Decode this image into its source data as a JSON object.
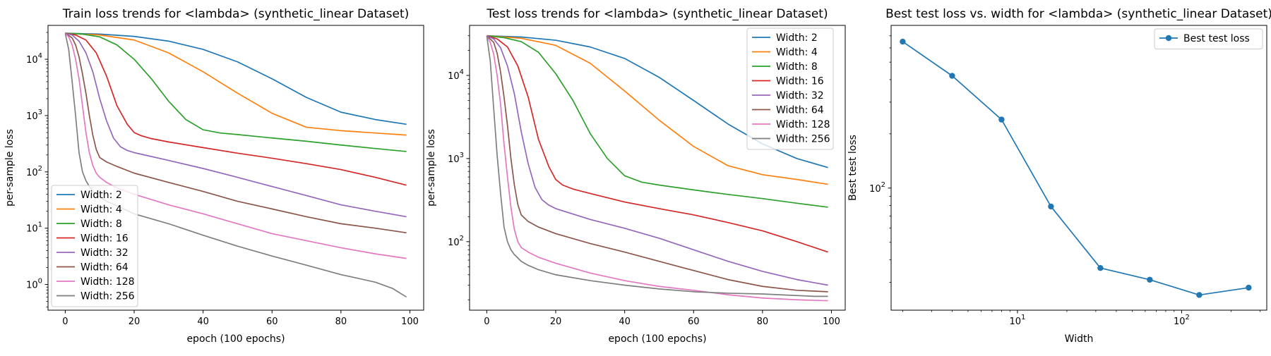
{
  "chart_data": [
    {
      "type": "line",
      "title": "Train loss trends for <lambda> (synthetic_linear Dataset)",
      "xlabel": "epoch (100 epochs)",
      "ylabel": "per-sample loss",
      "xlim": [
        -5,
        104
      ],
      "ylim": [
        0.35,
        40000
      ],
      "yscale": "log",
      "xticks": [
        {
          "v": 0,
          "label": "0"
        },
        {
          "v": 20,
          "label": "20"
        },
        {
          "v": 40,
          "label": "40"
        },
        {
          "v": 60,
          "label": "60"
        },
        {
          "v": 80,
          "label": "80"
        },
        {
          "v": 100,
          "label": "100"
        }
      ],
      "yticks": [
        {
          "v": 1,
          "label": "10^0"
        },
        {
          "v": 10,
          "label": "10^1"
        },
        {
          "v": 100,
          "label": "10^2"
        },
        {
          "v": 1000,
          "label": "10^3"
        },
        {
          "v": 10000,
          "label": "10^4"
        }
      ],
      "legend_position": "lower-left",
      "grid": false,
      "series": [
        {
          "name": "Width: 2",
          "color": "#1f77b4",
          "x": [
            0,
            10,
            20,
            30,
            40,
            50,
            60,
            70,
            80,
            90,
            99
          ],
          "values": [
            29000,
            28000,
            25500,
            21000,
            15000,
            9000,
            4500,
            2100,
            1150,
            850,
            700
          ]
        },
        {
          "name": "Width: 4",
          "color": "#ff7f0e",
          "x": [
            0,
            10,
            20,
            30,
            40,
            50,
            60,
            70,
            80,
            90,
            99
          ],
          "values": [
            29000,
            27000,
            22000,
            13000,
            6000,
            2500,
            1100,
            620,
            540,
            490,
            450
          ]
        },
        {
          "name": "Width: 8",
          "color": "#2ca02c",
          "x": [
            0,
            5,
            10,
            15,
            20,
            25,
            30,
            35,
            40,
            45,
            50,
            60,
            70,
            80,
            90,
            99
          ],
          "values": [
            29000,
            28000,
            25000,
            18000,
            10000,
            4500,
            1800,
            850,
            560,
            490,
            460,
            400,
            350,
            300,
            260,
            230
          ]
        },
        {
          "name": "Width: 16",
          "color": "#d62728",
          "x": [
            0,
            3,
            6,
            9,
            12,
            15,
            18,
            20,
            22,
            25,
            30,
            40,
            50,
            60,
            70,
            80,
            90,
            99
          ],
          "values": [
            29000,
            27000,
            22000,
            13000,
            5000,
            1500,
            700,
            500,
            440,
            390,
            340,
            270,
            215,
            175,
            140,
            110,
            80,
            58
          ]
        },
        {
          "name": "Width: 32",
          "color": "#9467bd",
          "x": [
            0,
            2,
            4,
            6,
            8,
            10,
            12,
            14,
            16,
            18,
            20,
            30,
            40,
            50,
            60,
            70,
            80,
            90,
            99
          ],
          "values": [
            29000,
            27000,
            21000,
            13000,
            6000,
            2000,
            800,
            400,
            280,
            240,
            220,
            160,
            115,
            80,
            55,
            38,
            26,
            20,
            16
          ]
        },
        {
          "name": "Width: 64",
          "color": "#8c564b",
          "x": [
            0,
            2,
            3,
            4,
            5,
            6,
            7,
            8,
            9,
            10,
            12,
            15,
            20,
            30,
            40,
            50,
            60,
            70,
            80,
            90,
            99
          ],
          "values": [
            29000,
            24000,
            18000,
            11000,
            5500,
            2500,
            1000,
            450,
            250,
            180,
            150,
            125,
            95,
            65,
            45,
            30,
            22,
            16,
            12,
            10,
            8.3
          ]
        },
        {
          "name": "Width: 128",
          "color": "#e377c2",
          "x": [
            0,
            1,
            2,
            3,
            4,
            5,
            6,
            7,
            8,
            9,
            10,
            12,
            15,
            20,
            30,
            40,
            50,
            60,
            70,
            80,
            90,
            99
          ],
          "values": [
            29000,
            25000,
            18000,
            10000,
            4500,
            1500,
            500,
            220,
            130,
            95,
            80,
            65,
            52,
            40,
            26,
            18,
            12,
            8,
            6,
            4.5,
            3.5,
            2.9
          ]
        },
        {
          "name": "Width: 256",
          "color": "#7f7f7f",
          "x": [
            0,
            1,
            2,
            3,
            4,
            5,
            6,
            7,
            8,
            10,
            12,
            15,
            20,
            30,
            40,
            50,
            60,
            70,
            80,
            90,
            95,
            99
          ],
          "values": [
            29000,
            15000,
            4000,
            1000,
            220,
            100,
            70,
            55,
            45,
            36,
            30,
            25,
            18,
            12,
            7.5,
            4.8,
            3.2,
            2.2,
            1.5,
            1.1,
            0.85,
            0.6
          ]
        }
      ]
    },
    {
      "type": "line",
      "title": "Test loss trends for <lambda> (synthetic_linear Dataset)",
      "xlabel": "epoch (100 epochs)",
      "ylabel": "per-sample loss",
      "xlim": [
        -5,
        104
      ],
      "ylim": [
        15,
        40000
      ],
      "yscale": "log",
      "xticks": [
        {
          "v": 0,
          "label": "0"
        },
        {
          "v": 20,
          "label": "20"
        },
        {
          "v": 40,
          "label": "40"
        },
        {
          "v": 60,
          "label": "60"
        },
        {
          "v": 80,
          "label": "80"
        },
        {
          "v": 100,
          "label": "100"
        }
      ],
      "yticks": [
        {
          "v": 100,
          "label": "10^2"
        },
        {
          "v": 1000,
          "label": "10^3"
        },
        {
          "v": 10000,
          "label": "10^4"
        }
      ],
      "legend_position": "upper-right",
      "grid": false,
      "series": [
        {
          "name": "Width: 2",
          "color": "#1f77b4",
          "x": [
            0,
            10,
            20,
            30,
            40,
            50,
            60,
            70,
            80,
            90,
            99
          ],
          "values": [
            30000,
            29000,
            26500,
            22000,
            16000,
            9500,
            5000,
            2600,
            1500,
            1000,
            780
          ]
        },
        {
          "name": "Width: 4",
          "color": "#ff7f0e",
          "x": [
            0,
            10,
            20,
            30,
            40,
            50,
            60,
            70,
            80,
            90,
            99
          ],
          "values": [
            30000,
            28000,
            23000,
            14000,
            6500,
            2900,
            1400,
            820,
            640,
            560,
            490
          ]
        },
        {
          "name": "Width: 8",
          "color": "#2ca02c",
          "x": [
            0,
            5,
            10,
            15,
            20,
            25,
            30,
            35,
            40,
            45,
            50,
            60,
            70,
            80,
            90,
            99
          ],
          "values": [
            30000,
            28500,
            25500,
            19000,
            10500,
            5000,
            2000,
            1000,
            620,
            520,
            480,
            420,
            370,
            330,
            290,
            260
          ]
        },
        {
          "name": "Width: 16",
          "color": "#d62728",
          "x": [
            0,
            3,
            6,
            9,
            12,
            15,
            18,
            20,
            22,
            25,
            30,
            40,
            50,
            60,
            70,
            80,
            90,
            99
          ],
          "values": [
            30000,
            27500,
            22000,
            13000,
            5500,
            1700,
            800,
            560,
            480,
            430,
            380,
            300,
            250,
            210,
            170,
            135,
            100,
            75
          ]
        },
        {
          "name": "Width: 32",
          "color": "#9467bd",
          "x": [
            0,
            2,
            4,
            6,
            8,
            10,
            12,
            14,
            16,
            18,
            20,
            30,
            40,
            50,
            60,
            70,
            80,
            90,
            99
          ],
          "values": [
            30000,
            27500,
            21500,
            13000,
            6000,
            2100,
            870,
            450,
            320,
            275,
            250,
            185,
            145,
            110,
            80,
            58,
            44,
            35,
            30
          ]
        },
        {
          "name": "Width: 64",
          "color": "#8c564b",
          "x": [
            0,
            2,
            3,
            4,
            5,
            6,
            7,
            8,
            9,
            10,
            12,
            15,
            20,
            30,
            40,
            50,
            60,
            70,
            80,
            90,
            99
          ],
          "values": [
            30000,
            25000,
            18500,
            11000,
            5500,
            2500,
            1000,
            480,
            280,
            210,
            175,
            150,
            125,
            95,
            75,
            58,
            45,
            35,
            29,
            26,
            25
          ]
        },
        {
          "name": "Width: 128",
          "color": "#e377c2",
          "x": [
            0,
            1,
            2,
            3,
            4,
            5,
            6,
            7,
            8,
            9,
            10,
            12,
            15,
            20,
            30,
            40,
            50,
            60,
            70,
            80,
            90,
            99
          ],
          "values": [
            30000,
            25000,
            18000,
            10000,
            4500,
            1500,
            600,
            260,
            140,
            100,
            85,
            75,
            65,
            55,
            42,
            34,
            29,
            26,
            23,
            21,
            20,
            19.5
          ]
        },
        {
          "name": "Width: 256",
          "color": "#7f7f7f",
          "x": [
            0,
            1,
            2,
            3,
            4,
            5,
            6,
            7,
            8,
            10,
            12,
            15,
            20,
            30,
            40,
            50,
            60,
            70,
            80,
            90,
            95,
            99
          ],
          "values": [
            30000,
            15000,
            4000,
            1100,
            380,
            150,
            100,
            80,
            70,
            58,
            52,
            46,
            40,
            34,
            30,
            27,
            25,
            24,
            23.5,
            22.5,
            22,
            22
          ]
        }
      ]
    },
    {
      "type": "line",
      "title": "Best test loss vs. width for <lambda> (synthetic_linear Dataset)",
      "xlabel": "Width",
      "ylabel": "Best test loss",
      "xscale": "log",
      "yscale": "log",
      "xlim": [
        1.7,
        330
      ],
      "ylim": [
        21,
        800
      ],
      "xticks": [
        {
          "v": 10,
          "label": "10^1"
        },
        {
          "v": 100,
          "label": "10^2"
        }
      ],
      "yticks": [
        {
          "v": 100,
          "label": "10^2"
        }
      ],
      "legend_position": "upper-right",
      "grid": false,
      "markers": true,
      "series": [
        {
          "name": "Best test loss",
          "color": "#1f77b4",
          "x": [
            2,
            4,
            8,
            16,
            32,
            64,
            128,
            256
          ],
          "values": [
            650,
            420,
            240,
            79,
            36,
            31,
            25.5,
            28
          ]
        }
      ]
    }
  ]
}
